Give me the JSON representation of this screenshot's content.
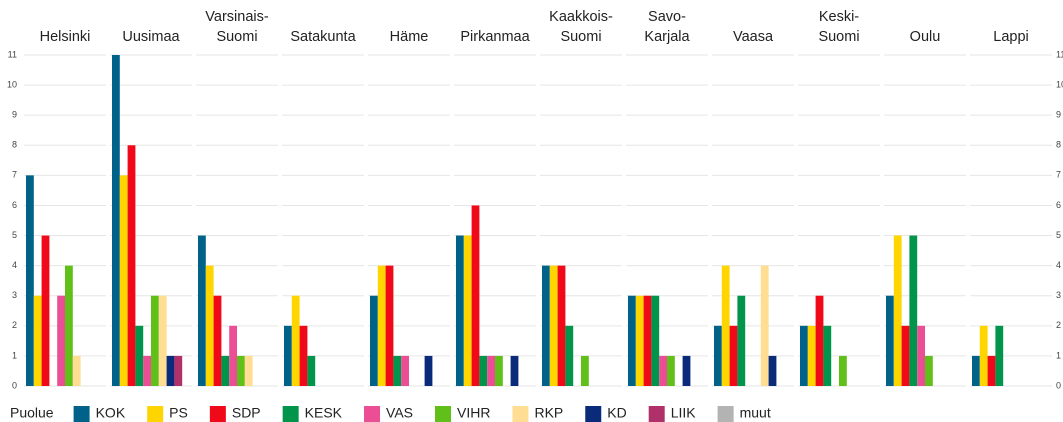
{
  "chart_data": {
    "type": "bar",
    "categories": [
      "Helsinki",
      "Uusimaa",
      "Varsinais-\nSuomi",
      "Satakunta",
      "Häme",
      "Pirkanmaa",
      "Kaakkois-\nSuomi",
      "Savo-\nKarjala",
      "Vaasa",
      "Keski-\nSuomi",
      "Oulu",
      "Lappi"
    ],
    "legend_title": "Puolue",
    "series": [
      {
        "name": "KOK",
        "color": "#006288",
        "values": [
          7,
          11,
          5,
          2,
          3,
          5,
          4,
          3,
          2,
          2,
          3,
          1
        ]
      },
      {
        "name": "PS",
        "color": "#FFD500",
        "values": [
          3,
          7,
          4,
          3,
          4,
          5,
          4,
          3,
          4,
          2,
          5,
          2
        ]
      },
      {
        "name": "SDP",
        "color": "#F00A19",
        "values": [
          5,
          8,
          3,
          2,
          4,
          6,
          4,
          3,
          2,
          3,
          2,
          1
        ]
      },
      {
        "name": "KESK",
        "color": "#01954B",
        "values": [
          0,
          2,
          1,
          1,
          1,
          1,
          2,
          3,
          3,
          2,
          5,
          2
        ]
      },
      {
        "name": "VAS",
        "color": "#EC4E95",
        "values": [
          3,
          1,
          2,
          0,
          1,
          1,
          0,
          1,
          0,
          0,
          2,
          0
        ]
      },
      {
        "name": "VIHR",
        "color": "#61BF1A",
        "values": [
          4,
          3,
          1,
          0,
          0,
          1,
          1,
          1,
          0,
          1,
          1,
          0
        ]
      },
      {
        "name": "RKP",
        "color": "#FFDD93",
        "values": [
          1,
          3,
          1,
          0,
          0,
          0,
          0,
          0,
          4,
          0,
          0,
          0
        ]
      },
      {
        "name": "KD",
        "color": "#0A2A7A",
        "values": [
          0,
          1,
          0,
          0,
          1,
          1,
          0,
          1,
          1,
          0,
          0,
          0
        ]
      },
      {
        "name": "LIIK",
        "color": "#B0306A",
        "values": [
          0,
          1,
          0,
          0,
          0,
          0,
          0,
          0,
          0,
          0,
          0,
          0
        ]
      },
      {
        "name": "muut",
        "color": "#B3B3B3",
        "values": [
          0,
          0,
          0,
          0,
          0,
          0,
          0,
          0,
          0,
          0,
          0,
          0
        ]
      }
    ],
    "ylim": [
      0,
      11
    ],
    "yticks": [
      0,
      1,
      2,
      3,
      4,
      5,
      6,
      7,
      8,
      9,
      10,
      11
    ],
    "grid": true
  }
}
